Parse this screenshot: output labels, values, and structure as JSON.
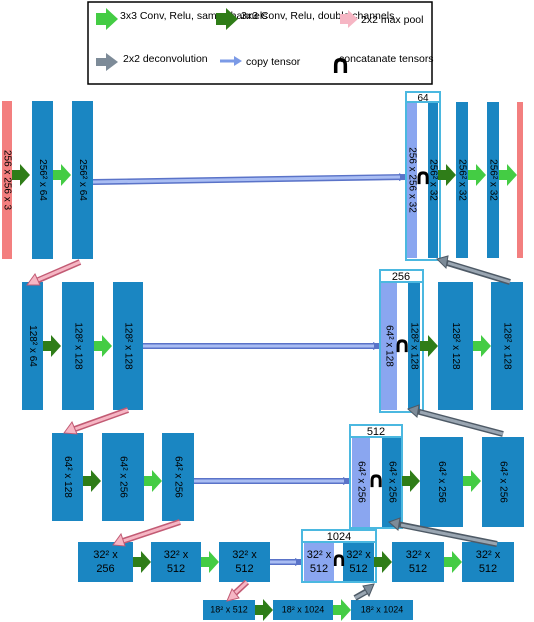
{
  "legend": {
    "conv_same": "3x3 Conv, Relu, same channels",
    "conv_double": "3x3 Conv, Relu, double channels",
    "maxpool": "2x2 max pool",
    "deconv": "2x2 deconvolution",
    "copy": "copy tensor",
    "concat": "concatanate tensors"
  },
  "colors": {
    "block": "#1a86c2",
    "input_output": "#f37f7f",
    "skip_block": "#8aa6f0",
    "conv_same_arrow": "#44cc44",
    "conv_double_arrow": "#2f7d18",
    "maxpool_arrow": "#f6b6c4",
    "deconv_arrow": "#7d8b98",
    "copy_arrow": "#7b9ae6"
  },
  "blocks": [
    {
      "id": "input",
      "label": "256 x 256 x 3"
    },
    {
      "id": "e1a",
      "label": "256² x 64"
    },
    {
      "id": "e1b",
      "label": "256² x 64"
    },
    {
      "id": "e2a",
      "label": "128² x 64"
    },
    {
      "id": "e2b",
      "label": "128² x 128"
    },
    {
      "id": "e2c",
      "label": "128² x 128"
    },
    {
      "id": "e3a",
      "label": "64² x 128"
    },
    {
      "id": "e3b",
      "label": "64² x 256"
    },
    {
      "id": "e3c",
      "label": "64² x 256"
    },
    {
      "id": "e4a",
      "label": "32² x 256"
    },
    {
      "id": "e4b",
      "label": "32² x 512"
    },
    {
      "id": "e4c",
      "label": "32² x 512"
    },
    {
      "id": "b1",
      "label": "18² x 512"
    },
    {
      "id": "b2",
      "label": "18² x 1024"
    },
    {
      "id": "b3",
      "label": "18² x 1024"
    },
    {
      "id": "d4s",
      "label": "32² x 512"
    },
    {
      "id": "d4u",
      "label": "32² x 512"
    },
    {
      "id": "d4b",
      "label": "32² x 512"
    },
    {
      "id": "d4c",
      "label": "32² x 512"
    },
    {
      "id": "d3s",
      "label": "64² x 256"
    },
    {
      "id": "d3u",
      "label": "64² x 256"
    },
    {
      "id": "d3b",
      "label": "64² x 256"
    },
    {
      "id": "d3c",
      "label": "64² x 256"
    },
    {
      "id": "d2s",
      "label": "64² x 128"
    },
    {
      "id": "d2u",
      "label": "128² x 128"
    },
    {
      "id": "d2b",
      "label": "128² x 128"
    },
    {
      "id": "d2c",
      "label": "128² x 128"
    },
    {
      "id": "d1s",
      "label": "256 x 256 x 32"
    },
    {
      "id": "d1u",
      "label": "256² x 32"
    },
    {
      "id": "d1b",
      "label": "256² x 32"
    },
    {
      "id": "d1c",
      "label": "256² x 32"
    },
    {
      "id": "output",
      "label": ""
    }
  ],
  "concat_boxes": [
    {
      "id": "cat1",
      "label": "64"
    },
    {
      "id": "cat2",
      "label": "256"
    },
    {
      "id": "cat3",
      "label": "512"
    },
    {
      "id": "cat4",
      "label": "1024"
    }
  ],
  "concat_symbol": "∩"
}
